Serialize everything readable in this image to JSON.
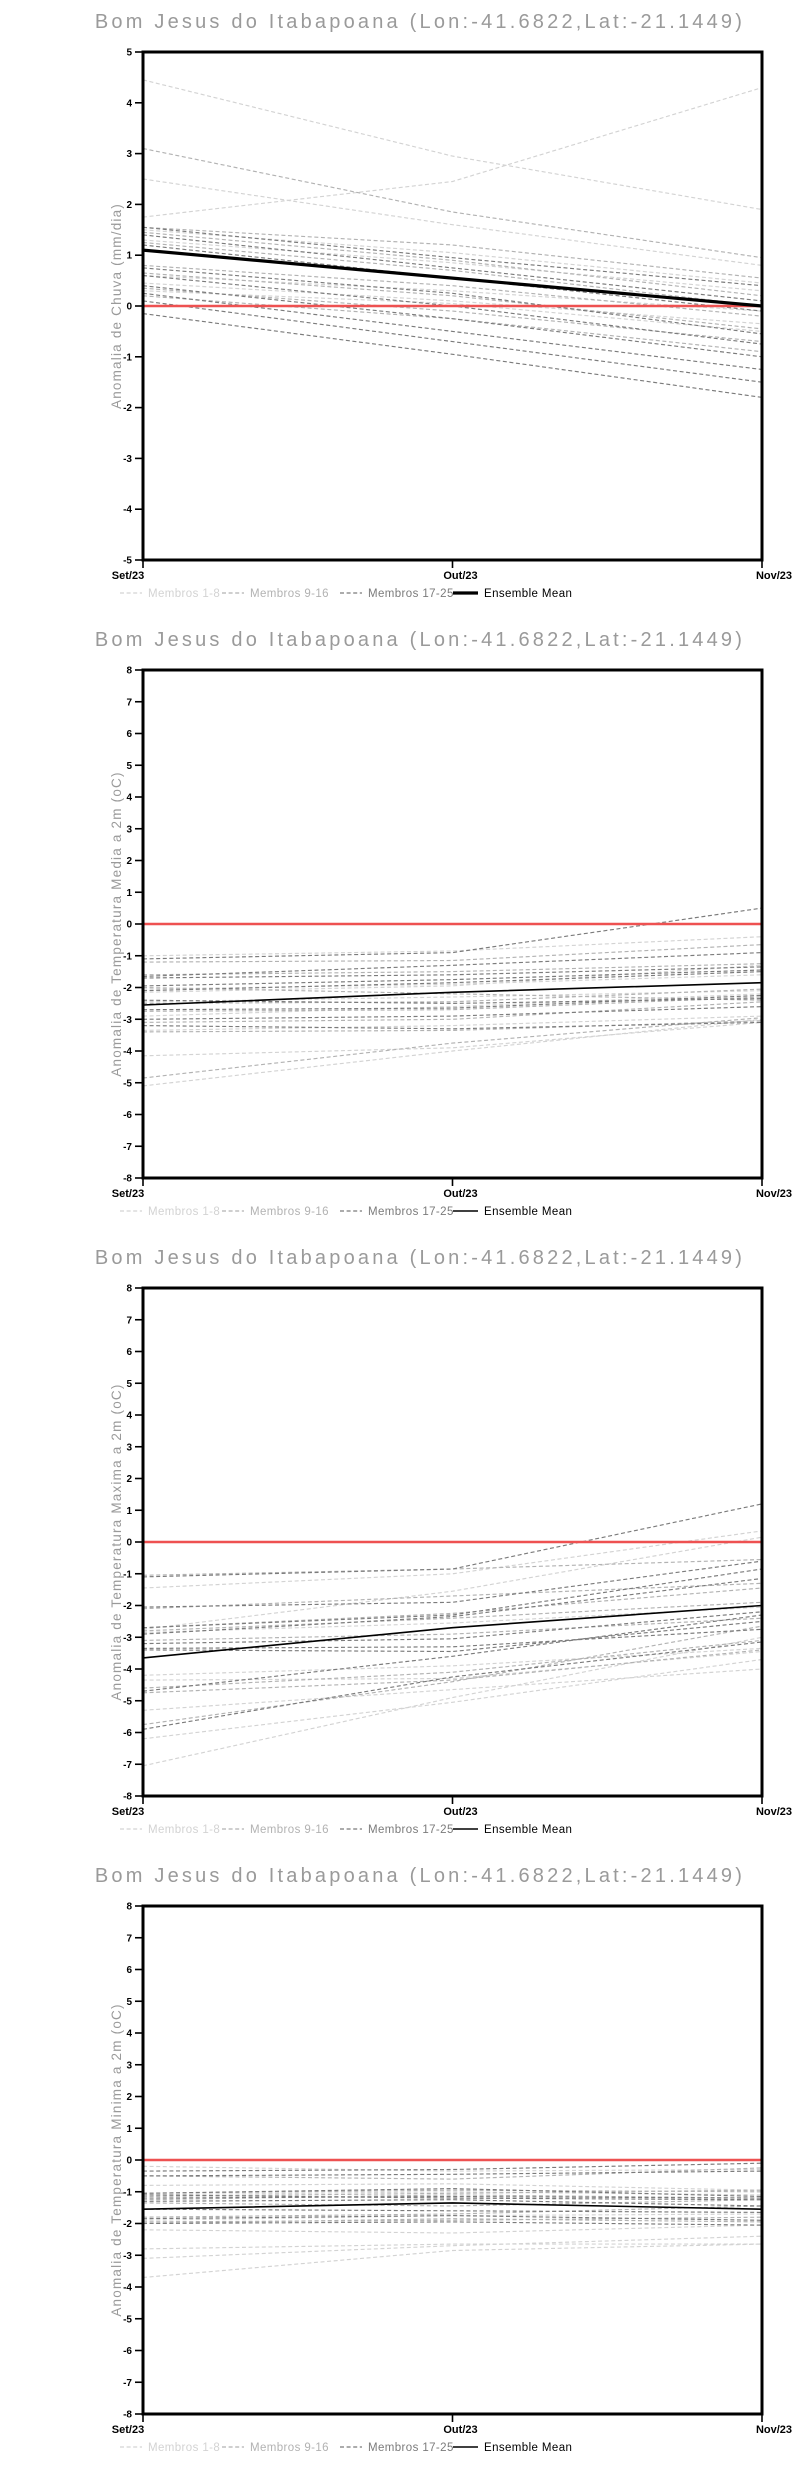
{
  "location_title": "Bom Jesus do Itabapoana (Lon:-41.6822,Lat:-21.1449)",
  "x_labels": [
    "Set/23",
    "Out/23",
    "Nov/23"
  ],
  "legend": {
    "member_groups": [
      "Membros 1-8",
      "Membros 9-16",
      "Membros 17-25"
    ],
    "mean_label": "Ensemble Mean"
  },
  "colors": {
    "title_gray": "#9a9a9a",
    "group1": "#d3d3d3",
    "group2": "#b2b2b2",
    "group3": "#7b7b7b",
    "mean": "#000000",
    "zero_line": "#ee5151",
    "frame": "#000000"
  },
  "chart_data": [
    {
      "type": "line",
      "title": "Bom Jesus do Itabapoana (Lon:-41.6822,Lat:-21.1449)",
      "ylabel": "Anomalia de Chuva (mm/dia)",
      "ylim": [
        -5,
        5
      ],
      "yticks": [
        5,
        4,
        3,
        2,
        1,
        0,
        -1,
        -2,
        -3,
        -4,
        -5
      ],
      "x": [
        "Set/23",
        "Out/23",
        "Nov/23"
      ],
      "zero_line": 0,
      "mean_style": "thick",
      "legend_position": "bottom",
      "grid": false,
      "series": [
        {
          "name": "Membros 1-8",
          "color": "group1",
          "members": [
            [
              4.45,
              2.95,
              1.9
            ],
            [
              1.75,
              2.45,
              4.3
            ],
            [
              2.5,
              1.6,
              0.8
            ],
            [
              1.5,
              1.05,
              0.45
            ],
            [
              1.3,
              0.85,
              0.3
            ],
            [
              0.6,
              0.3,
              -0.1
            ],
            [
              0.45,
              0.1,
              -0.35
            ],
            [
              0.3,
              0.05,
              -0.5
            ]
          ]
        },
        {
          "name": "Membros 9-16",
          "color": "group2",
          "members": [
            [
              3.1,
              1.85,
              0.95
            ],
            [
              1.55,
              1.2,
              0.55
            ],
            [
              1.45,
              0.9,
              0.2
            ],
            [
              1.25,
              0.7,
              0.0
            ],
            [
              0.8,
              0.4,
              -0.2
            ],
            [
              0.65,
              0.2,
              -0.45
            ],
            [
              0.35,
              -0.1,
              -0.7
            ],
            [
              0.2,
              -0.25,
              -0.9
            ]
          ]
        },
        {
          "name": "Membros 17-25",
          "color": "group3",
          "members": [
            [
              1.55,
              0.95,
              0.4
            ],
            [
              1.4,
              0.75,
              0.1
            ],
            [
              1.2,
              0.55,
              -0.1
            ],
            [
              0.75,
              0.25,
              -0.55
            ],
            [
              0.6,
              0.0,
              -0.75
            ],
            [
              0.4,
              -0.25,
              -1.0
            ],
            [
              0.25,
              -0.5,
              -1.25
            ],
            [
              0.1,
              -0.7,
              -1.5
            ],
            [
              -0.15,
              -0.95,
              -1.8
            ]
          ]
        },
        {
          "name": "Ensemble Mean",
          "color": "mean",
          "values": [
            1.1,
            0.55,
            0.0
          ]
        }
      ]
    },
    {
      "type": "line",
      "title": "Bom Jesus do Itabapoana (Lon:-41.6822,Lat:-21.1449)",
      "ylabel": "Anomalia de Temperatura Media a 2m (oC)",
      "ylim": [
        -8,
        8
      ],
      "yticks": [
        8,
        7,
        6,
        5,
        4,
        3,
        2,
        1,
        0,
        -1,
        -2,
        -3,
        -4,
        -5,
        -6,
        -7,
        -8
      ],
      "x": [
        "Set/23",
        "Out/23",
        "Nov/23"
      ],
      "zero_line": 0,
      "mean_style": "thin",
      "legend_position": "bottom",
      "grid": false,
      "series": [
        {
          "name": "Membros 1-8",
          "color": "group1",
          "members": [
            [
              -1.0,
              -0.85,
              -0.4
            ],
            [
              -2.05,
              -1.9,
              -1.6
            ],
            [
              -2.45,
              -2.3,
              -2.1
            ],
            [
              -2.9,
              -2.6,
              -2.2
            ],
            [
              -3.35,
              -3.2,
              -2.9
            ],
            [
              -4.15,
              -3.9,
              -3.1
            ],
            [
              -5.1,
              -4.0,
              -3.0
            ],
            [
              -2.15,
              -1.95,
              -1.3
            ]
          ]
        },
        {
          "name": "Membros 9-16",
          "color": "group2",
          "members": [
            [
              -1.2,
              -1.15,
              -0.65
            ],
            [
              -1.6,
              -1.5,
              -1.25
            ],
            [
              -2.0,
              -2.2,
              -2.4
            ],
            [
              -2.5,
              -2.45,
              -2.05
            ],
            [
              -2.75,
              -2.7,
              -2.3
            ],
            [
              -3.1,
              -3.0,
              -2.45
            ],
            [
              -3.4,
              -3.35,
              -3.05
            ],
            [
              -4.85,
              -3.75,
              -2.95
            ]
          ]
        },
        {
          "name": "Membros 17-25",
          "color": "group3",
          "members": [
            [
              -1.65,
              -1.3,
              -0.9
            ],
            [
              -1.7,
              -1.6,
              -1.35
            ],
            [
              -1.95,
              -1.75,
              -1.45
            ],
            [
              -2.1,
              -1.85,
              -1.5
            ],
            [
              -2.4,
              -2.5,
              -2.35
            ],
            [
              -2.7,
              -2.65,
              -2.25
            ],
            [
              -3.0,
              -2.9,
              -2.6
            ],
            [
              -3.2,
              -3.3,
              -3.1
            ],
            [
              -1.1,
              -0.9,
              0.5
            ]
          ]
        },
        {
          "name": "Ensemble Mean",
          "color": "mean",
          "values": [
            -2.55,
            -2.15,
            -1.85
          ]
        }
      ]
    },
    {
      "type": "line",
      "title": "Bom Jesus do Itabapoana (Lon:-41.6822,Lat:-21.1449)",
      "ylabel": "Anomalia de Temperatura Maxima a 2m (oC)",
      "ylim": [
        -8,
        8
      ],
      "yticks": [
        8,
        7,
        6,
        5,
        4,
        3,
        2,
        1,
        0,
        -1,
        -2,
        -3,
        -4,
        -5,
        -6,
        -7,
        -8
      ],
      "x": [
        "Set/23",
        "Out/23",
        "Nov/23"
      ],
      "zero_line": 0,
      "mean_style": "thin",
      "legend_position": "bottom",
      "grid": false,
      "series": [
        {
          "name": "Membros 1-8",
          "color": "group1",
          "members": [
            [
              -1.45,
              -1.0,
              0.35
            ],
            [
              -2.75,
              -1.55,
              0.15
            ],
            [
              -4.2,
              -3.9,
              -3.35
            ],
            [
              -4.35,
              -4.3,
              -3.45
            ],
            [
              -5.3,
              -4.65,
              -4.0
            ],
            [
              -6.2,
              -5.05,
              -3.7
            ],
            [
              -7.05,
              -4.9,
              -3.0
            ],
            [
              -2.85,
              -2.55,
              -2.05
            ]
          ]
        },
        {
          "name": "Membros 9-16",
          "color": "group2",
          "members": [
            [
              -1.05,
              -0.85,
              -0.55
            ],
            [
              -2.1,
              -1.7,
              -1.3
            ],
            [
              -2.7,
              -2.25,
              -1.45
            ],
            [
              -2.8,
              -2.4,
              -1.9
            ],
            [
              -3.1,
              -2.9,
              -2.4
            ],
            [
              -4.6,
              -4.1,
              -3.1
            ],
            [
              -4.75,
              -4.35,
              -3.4
            ],
            [
              -5.75,
              -4.4,
              -2.65
            ]
          ]
        },
        {
          "name": "Membros 17-25",
          "color": "group3",
          "members": [
            [
              -1.1,
              -0.85,
              1.2
            ],
            [
              -2.05,
              -1.9,
              -0.6
            ],
            [
              -2.7,
              -2.3,
              -0.85
            ],
            [
              -2.9,
              -2.35,
              -1.15
            ],
            [
              -3.2,
              -3.05,
              -2.2
            ],
            [
              -3.35,
              -3.3,
              -2.75
            ],
            [
              -4.7,
              -3.6,
              -2.3
            ],
            [
              -5.9,
              -4.25,
              -3.15
            ],
            [
              -3.4,
              -3.45,
              -2.5
            ]
          ]
        },
        {
          "name": "Ensemble Mean",
          "color": "mean",
          "values": [
            -3.65,
            -2.7,
            -2.0
          ]
        }
      ]
    },
    {
      "type": "line",
      "title": "Bom Jesus do Itabapoana (Lon:-41.6822,Lat:-21.1449)",
      "ylabel": "Anomalia de Temperatura Minima a 2m (oC)",
      "ylim": [
        -8,
        8
      ],
      "yticks": [
        8,
        7,
        6,
        5,
        4,
        3,
        2,
        1,
        0,
        -1,
        -2,
        -3,
        -4,
        -5,
        -6,
        -7,
        -8
      ],
      "x": [
        "Set/23",
        "Out/23",
        "Nov/23"
      ],
      "zero_line": 0,
      "mean_style": "thin",
      "legend_position": "bottom",
      "grid": false,
      "series": [
        {
          "name": "Membros 1-8",
          "color": "group1",
          "members": [
            [
              -0.2,
              -0.35,
              -0.3
            ],
            [
              -0.8,
              -0.75,
              -0.95
            ],
            [
              -1.1,
              -1.0,
              -1.1
            ],
            [
              -1.9,
              -1.75,
              -1.7
            ],
            [
              -2.2,
              -2.3,
              -2.05
            ],
            [
              -2.8,
              -2.65,
              -2.65
            ],
            [
              -3.1,
              -2.7,
              -2.4
            ],
            [
              -3.7,
              -2.85,
              -2.65
            ]
          ]
        },
        {
          "name": "Membros 9-16",
          "color": "group2",
          "members": [
            [
              -0.5,
              -0.6,
              -0.25
            ],
            [
              -1.05,
              -0.95,
              -1.0
            ],
            [
              -1.25,
              -1.1,
              -1.2
            ],
            [
              -1.35,
              -1.45,
              -1.25
            ],
            [
              -1.8,
              -1.7,
              -1.45
            ],
            [
              -1.95,
              -1.9,
              -1.8
            ],
            [
              -2.0,
              -1.85,
              -1.95
            ],
            [
              -1.15,
              -1.05,
              -0.95
            ]
          ]
        },
        {
          "name": "Membros 17-25",
          "color": "group3",
          "members": [
            [
              -0.35,
              -0.3,
              -0.1
            ],
            [
              -1.05,
              -0.9,
              -1.15
            ],
            [
              -1.2,
              -1.15,
              -1.2
            ],
            [
              -1.3,
              -1.25,
              -1.45
            ],
            [
              -1.55,
              -1.6,
              -1.65
            ],
            [
              -1.85,
              -1.75,
              -1.9
            ],
            [
              -2.0,
              -1.95,
              -2.05
            ],
            [
              -1.1,
              -1.2,
              -1.25
            ],
            [
              -0.5,
              -0.45,
              -0.35
            ]
          ]
        },
        {
          "name": "Ensemble Mean",
          "color": "mean",
          "values": [
            -1.55,
            -1.35,
            -1.55
          ]
        }
      ]
    }
  ]
}
